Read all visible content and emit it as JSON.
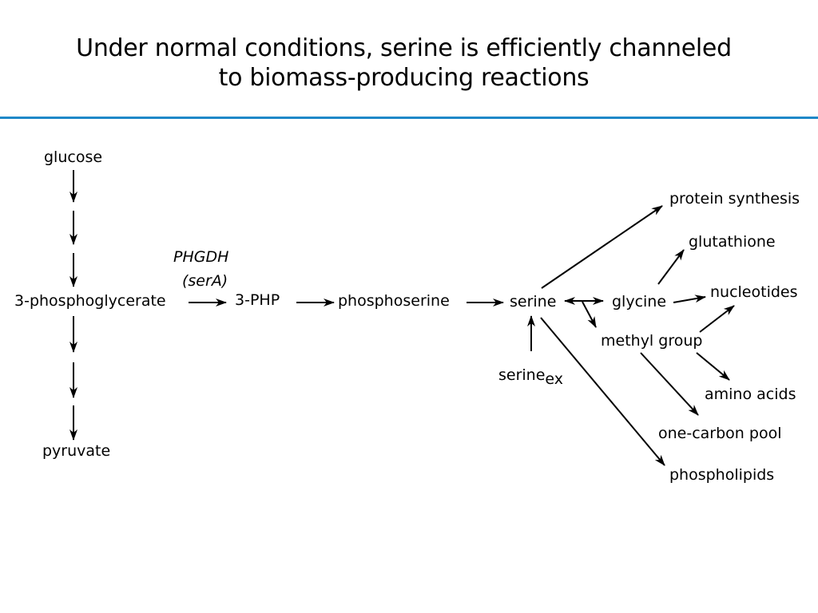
{
  "slide": {
    "title_line1": "Under normal conditions, serine is efficiently channeled",
    "title_line2": "to biomass-producing reactions",
    "accent_color": "#1e88c8"
  },
  "diagram": {
    "nodes": {
      "glucose": "glucose",
      "three_pg": "3-phosphoglycerate",
      "pyruvate": "pyruvate",
      "enzyme_name": "PHGDH",
      "enzyme_gene": "(serA)",
      "three_php": "3-PHP",
      "phosphoserine": "phosphoserine",
      "serine": "serine",
      "serine_ex_base": "serine",
      "serine_ex_sub": "ex",
      "glycine": "glycine",
      "methyl_group": "methyl group",
      "protein_synthesis": "protein synthesis",
      "glutathione": "glutathione",
      "nucleotides": "nucleotides",
      "amino_acids": "amino acids",
      "one_carbon_pool": "one-carbon pool",
      "phospholipids": "phospholipids"
    }
  }
}
